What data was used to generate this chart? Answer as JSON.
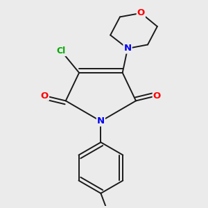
{
  "bg_color": "#ebebeb",
  "atom_colors": {
    "N": "#0000ee",
    "O": "#ff0000",
    "Cl": "#00aa00"
  },
  "bond_color": "#1a1a1a",
  "bond_width": 1.4,
  "figsize": [
    3.0,
    3.0
  ],
  "dpi": 100
}
